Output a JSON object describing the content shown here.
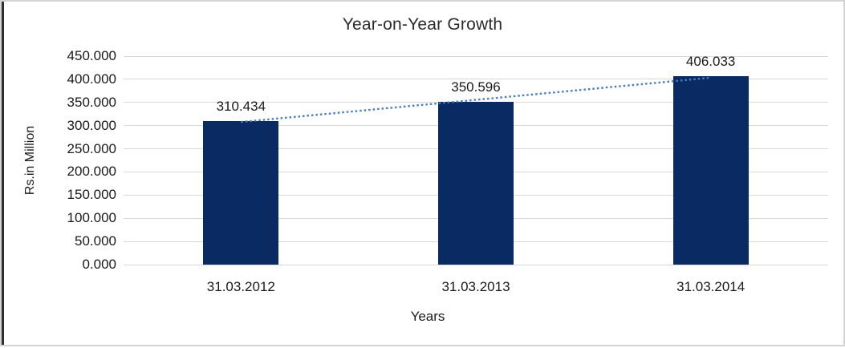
{
  "chart_data": {
    "type": "bar",
    "title": "Year-on-Year Growth",
    "xlabel": "Years",
    "ylabel": "Rs.in Million",
    "categories": [
      "31.03.2012",
      "31.03.2013",
      "31.03.2014"
    ],
    "values": [
      310.434,
      350.596,
      406.033
    ],
    "data_labels": [
      "310.434",
      "350.596",
      "406.033"
    ],
    "ylim": [
      0,
      450
    ],
    "ytick_step": 50,
    "ytick_labels": [
      "0.000",
      "50.000",
      "100.000",
      "150.000",
      "200.000",
      "250.000",
      "300.000",
      "350.000",
      "400.000",
      "450.000"
    ],
    "grid": "horizontal",
    "legend": "none",
    "bar_color": "#0a2a63",
    "gridline_color": "#d9d9d9",
    "trendline": {
      "type": "linear",
      "style": "dotted",
      "color": "#4a7ebb"
    }
  }
}
